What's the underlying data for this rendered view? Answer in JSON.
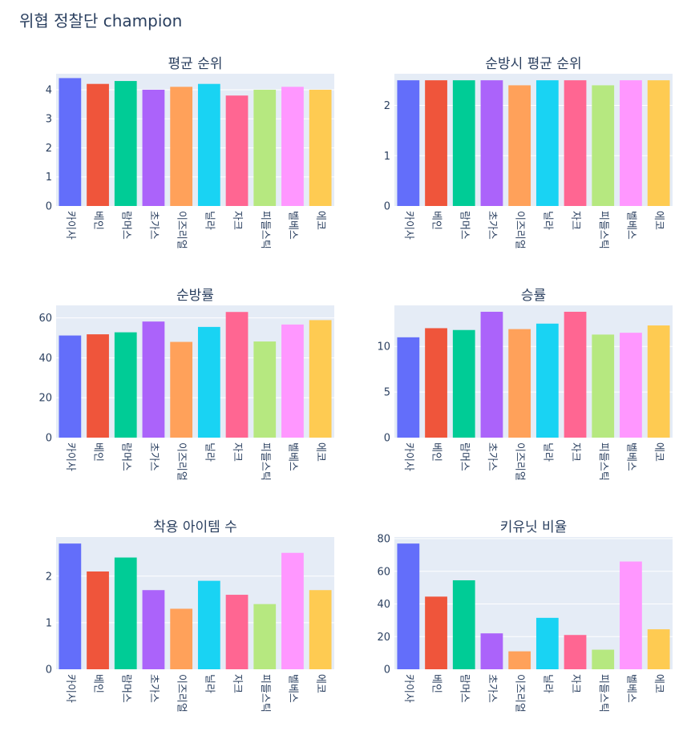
{
  "figure_title": "위협 정찰단 champion",
  "colors": [
    "#636efa",
    "#ef553b",
    "#00cc96",
    "#ab63fa",
    "#ffa15a",
    "#19d3f3",
    "#ff6692",
    "#b6e880",
    "#ff97ff",
    "#fecb52"
  ],
  "chart_data": [
    {
      "type": "bar",
      "title": "평균 순위",
      "categories": [
        "카이사",
        "베인",
        "람머스",
        "초가스",
        "이즈리얼",
        "닐라",
        "자크",
        "피들스틱",
        "벨베스",
        "에코"
      ],
      "values": [
        4.4,
        4.2,
        4.3,
        4.0,
        4.1,
        4.2,
        3.8,
        4.0,
        4.1,
        4.0
      ],
      "ylim": [
        0,
        4.55
      ],
      "yticks": [
        0,
        1,
        2,
        3,
        4
      ],
      "grid": true
    },
    {
      "type": "bar",
      "title": "순방시 평균 순위",
      "categories": [
        "카이사",
        "베인",
        "람머스",
        "초가스",
        "이즈리얼",
        "닐라",
        "자크",
        "피들스틱",
        "벨베스",
        "에코"
      ],
      "values": [
        2.5,
        2.5,
        2.5,
        2.5,
        2.4,
        2.5,
        2.5,
        2.4,
        2.5,
        2.5
      ],
      "ylim": [
        0,
        2.63
      ],
      "yticks": [
        0,
        1,
        2
      ],
      "grid": true
    },
    {
      "type": "bar",
      "title": "순방률",
      "categories": [
        "카이사",
        "베인",
        "람머스",
        "초가스",
        "이즈리얼",
        "닐라",
        "자크",
        "피들스틱",
        "벨베스",
        "에코"
      ],
      "values": [
        51.2,
        51.8,
        52.8,
        58.2,
        48.0,
        55.5,
        63.0,
        48.2,
        56.7,
        58.9
      ],
      "ylim": [
        0,
        66.3
      ],
      "yticks": [
        0,
        20,
        40,
        60
      ],
      "grid": true
    },
    {
      "type": "bar",
      "title": "승률",
      "categories": [
        "카이사",
        "베인",
        "람머스",
        "초가스",
        "이즈리얼",
        "닐라",
        "자크",
        "피들스틱",
        "벨베스",
        "에코"
      ],
      "values": [
        11.0,
        12.0,
        11.8,
        13.8,
        11.9,
        12.5,
        13.8,
        11.3,
        11.5,
        12.3
      ],
      "ylim": [
        0,
        14.5
      ],
      "yticks": [
        0,
        5,
        10
      ],
      "grid": true
    },
    {
      "type": "bar",
      "title": "착용 아이템 수",
      "categories": [
        "카이사",
        "베인",
        "람머스",
        "초가스",
        "이즈리얼",
        "닐라",
        "자크",
        "피들스틱",
        "벨베스",
        "에코"
      ],
      "values": [
        2.7,
        2.1,
        2.4,
        1.7,
        1.3,
        1.9,
        1.6,
        1.4,
        2.5,
        1.7
      ],
      "ylim": [
        0,
        2.84
      ],
      "yticks": [
        0,
        1,
        2
      ],
      "grid": true
    },
    {
      "type": "bar",
      "title": "키유닛 비율",
      "categories": [
        "카이사",
        "베인",
        "람머스",
        "초가스",
        "이즈리얼",
        "닐라",
        "자크",
        "피들스틱",
        "벨베스",
        "에코"
      ],
      "values": [
        77.0,
        44.5,
        54.5,
        22.0,
        11.0,
        31.5,
        21.0,
        12.0,
        66.0,
        24.5
      ],
      "ylim": [
        0,
        81
      ],
      "yticks": [
        0,
        20,
        40,
        60,
        80
      ],
      "grid": true
    }
  ]
}
